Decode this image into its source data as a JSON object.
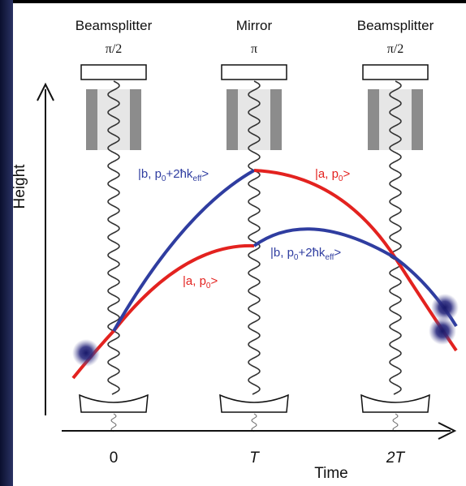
{
  "columns": [
    {
      "label": "Beamsplitter",
      "pulse": "π/2"
    },
    {
      "label": "Mirror",
      "pulse": "π"
    },
    {
      "label": "Beamsplitter",
      "pulse": "π/2"
    }
  ],
  "states": [
    {
      "main": "|b, p",
      "sub": "0",
      "mid": "+2ħk",
      "sub2": "eff",
      "end": ">"
    },
    {
      "main": "|a, p",
      "sub": "0",
      "end": ">"
    },
    {
      "main": "|b, p",
      "sub": "0",
      "mid": "+2ħk",
      "sub2": "eff",
      "end": ">"
    },
    {
      "main": "|a, p",
      "sub": "0",
      "end": ">"
    }
  ],
  "axes": {
    "y": "Height",
    "x": "Time"
  },
  "ticks": [
    "0",
    "T",
    "2T"
  ]
}
